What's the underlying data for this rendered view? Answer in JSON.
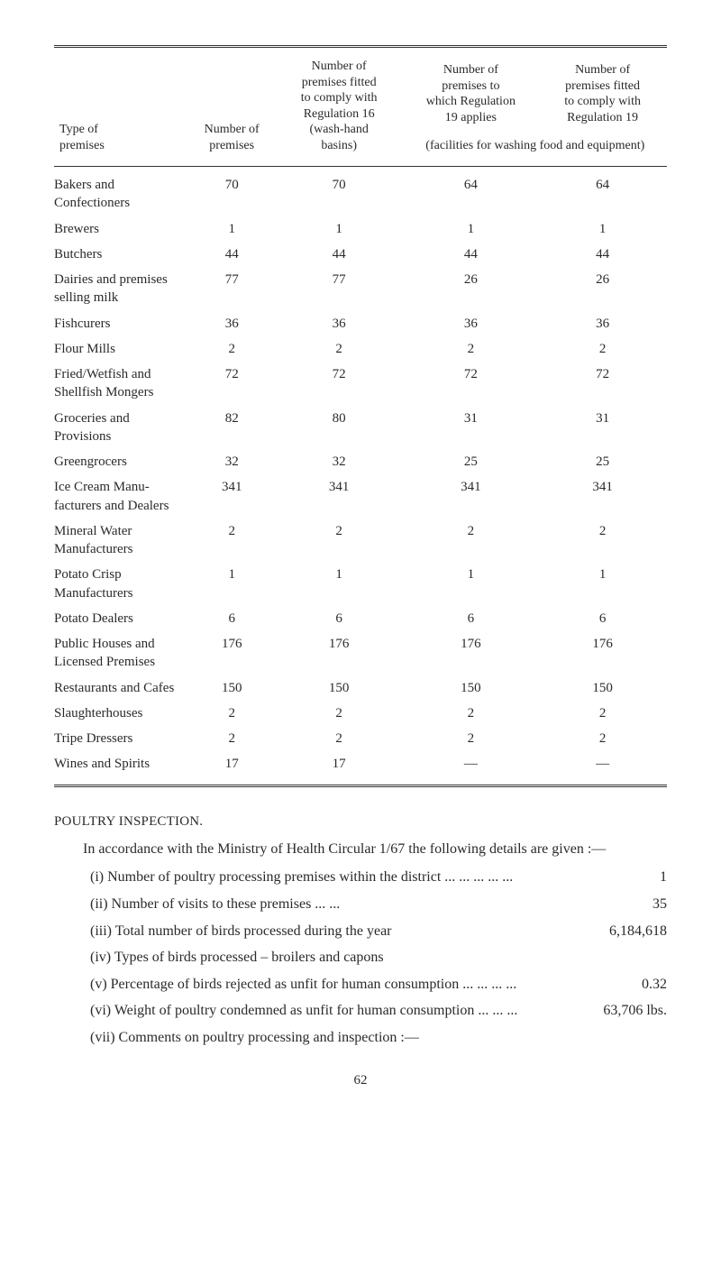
{
  "table": {
    "headers": {
      "col1": "Type of\npremises",
      "col2": "Number of\npremises",
      "col3": "Number of premises fitted to comply with Regulation 16 (wash-hand basins)",
      "col4": "Number of premises to which Regulation 19 applies",
      "col5": "Number of premises fitted to comply with Regulation 19",
      "col45_sub": "(facilities for washing food and equipment)"
    },
    "rows": [
      {
        "label": "Bakers and Confectioners",
        "c2": "70",
        "c3": "70",
        "c4": "64",
        "c5": "64"
      },
      {
        "label": "Brewers",
        "c2": "1",
        "c3": "1",
        "c4": "1",
        "c5": "1"
      },
      {
        "label": "Butchers",
        "c2": "44",
        "c3": "44",
        "c4": "44",
        "c5": "44"
      },
      {
        "label": "Dairies and premises selling milk",
        "c2": "77",
        "c3": "77",
        "c4": "26",
        "c5": "26"
      },
      {
        "label": "Fishcurers",
        "c2": "36",
        "c3": "36",
        "c4": "36",
        "c5": "36"
      },
      {
        "label": "Flour Mills",
        "c2": "2",
        "c3": "2",
        "c4": "2",
        "c5": "2"
      },
      {
        "label": "Fried/Wetfish and Shellfish Mongers",
        "c2": "72",
        "c3": "72",
        "c4": "72",
        "c5": "72"
      },
      {
        "label": "Groceries and Provisions",
        "c2": "82",
        "c3": "80",
        "c4": "31",
        "c5": "31"
      },
      {
        "label": "Greengrocers",
        "c2": "32",
        "c3": "32",
        "c4": "25",
        "c5": "25"
      },
      {
        "label": "Ice Cream Manu- facturers and Dealers",
        "c2": "341",
        "c3": "341",
        "c4": "341",
        "c5": "341"
      },
      {
        "label": "Mineral Water Manufacturers",
        "c2": "2",
        "c3": "2",
        "c4": "2",
        "c5": "2"
      },
      {
        "label": "Potato Crisp Manufacturers",
        "c2": "1",
        "c3": "1",
        "c4": "1",
        "c5": "1"
      },
      {
        "label": "Potato Dealers",
        "c2": "6",
        "c3": "6",
        "c4": "6",
        "c5": "6"
      },
      {
        "label": "Public Houses and Licensed Premises",
        "c2": "176",
        "c3": "176",
        "c4": "176",
        "c5": "176"
      },
      {
        "label": "Restaurants and Cafes",
        "c2": "150",
        "c3": "150",
        "c4": "150",
        "c5": "150"
      },
      {
        "label": "Slaughterhouses",
        "c2": "2",
        "c3": "2",
        "c4": "2",
        "c5": "2"
      },
      {
        "label": "Tripe Dressers",
        "c2": "2",
        "c3": "2",
        "c4": "2",
        "c5": "2"
      },
      {
        "label": "Wines and Spirits",
        "c2": "17",
        "c3": "17",
        "c4": "—",
        "c5": "—"
      }
    ]
  },
  "section": {
    "title": "POULTRY INSPECTION.",
    "intro": "In accordance with the Ministry of Health Circular 1/67 the following details are given :—",
    "items": [
      {
        "num": "(i)",
        "text": "Number of poultry processing premises within the district",
        "dots": "...   ...   ...   ...   ...",
        "value": "1"
      },
      {
        "num": "(ii)",
        "text": "Number of visits to these premises",
        "dots": "...   ...",
        "value": "35"
      },
      {
        "num": "(iii)",
        "text": "Total number of birds processed during the year",
        "dots": "",
        "value": "6,184,618"
      },
      {
        "num": "(iv)",
        "text": "Types of birds processed – broilers and capons",
        "dots": "",
        "value": ""
      },
      {
        "num": "(v)",
        "text": "Percentage of birds rejected as unfit for human consumption",
        "dots": "...   ...   ...   ...",
        "value": "0.32"
      },
      {
        "num": "(vi)",
        "text": "Weight of poultry condemned as unfit for human consumption",
        "dots": "...   ...   ...",
        "value": "63,706 lbs."
      },
      {
        "num": "(vii)",
        "text": "Comments on poultry processing and inspection :—",
        "dots": "",
        "value": ""
      }
    ]
  },
  "page_number": "62"
}
